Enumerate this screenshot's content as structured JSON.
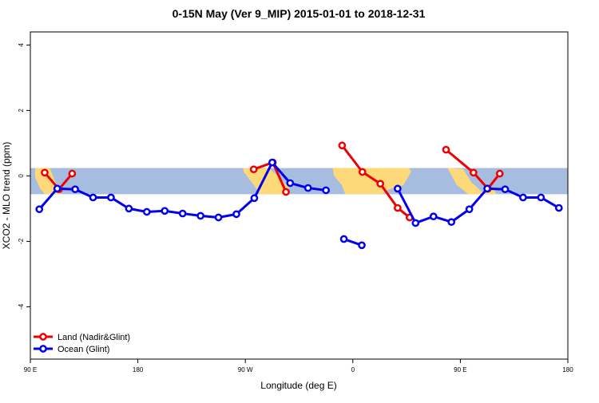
{
  "chart_data": {
    "type": "line",
    "title": "0-15N May (Ver 9_MIP)   2015-01-01 to 2018-12-31",
    "x_label": "Longitude (deg E)",
    "y_label": "XCO2 - MLO trend (ppm)",
    "xlim": [
      90,
      540
    ],
    "ylim": [
      -5.6,
      4.4
    ],
    "xticks": [
      {
        "value": 90,
        "label": "90 E"
      },
      {
        "value": 180,
        "label": "180"
      },
      {
        "value": 270,
        "label": "90 W"
      },
      {
        "value": 360,
        "label": "0"
      },
      {
        "value": 450,
        "label": "90 E"
      },
      {
        "value": 540,
        "label": "180"
      }
    ],
    "yticks": [
      -4,
      -2,
      0,
      2,
      4
    ],
    "band": {
      "ylim": [
        -0.56,
        0.24
      ],
      "color": "#a7bddf"
    },
    "legend": "bottom-left",
    "series": [
      {
        "name": "Land (Nadir&Glint)",
        "color": "#ee0000",
        "x": [
          102,
          114,
          125,
          null,
          277,
          293,
          304,
          null,
          351,
          368,
          383,
          397.5,
          407.5,
          null,
          438,
          461,
          473,
          483
        ],
        "values": [
          0.1,
          -0.41,
          0.07,
          null,
          0.2,
          0.41,
          -0.49,
          null,
          0.93,
          0.12,
          -0.24,
          -0.98,
          -1.27,
          null,
          0.8,
          0.1,
          -0.39,
          0.07
        ]
      },
      {
        "name": "Ocean (Glint)",
        "color": "#0000ee",
        "x": [
          97.5,
          112.5,
          127.5,
          142.5,
          157.5,
          172.5,
          187.5,
          202.5,
          217.5,
          232.5,
          247.5,
          262.5,
          277.5,
          292.5,
          307.5,
          322.5,
          337.5,
          null,
          352.5,
          367.5,
          382.5,
          397.5,
          412.5,
          427.5,
          442.5,
          457.5,
          472.5,
          487.5,
          502.5,
          517.5,
          532.5
        ],
        "values": [
          -1.02,
          -0.39,
          -0.41,
          -0.66,
          -0.66,
          -1.0,
          -1.1,
          -1.07,
          -1.15,
          -1.22,
          -1.27,
          -1.17,
          -0.68,
          0.41,
          -0.22,
          -0.37,
          -0.44,
          null,
          -1.93,
          -2.12,
          null,
          -0.39,
          -1.44,
          -1.24,
          -1.41,
          -1.02,
          -0.39,
          -0.41,
          -0.66,
          -0.66,
          -0.98
        ]
      }
    ]
  }
}
